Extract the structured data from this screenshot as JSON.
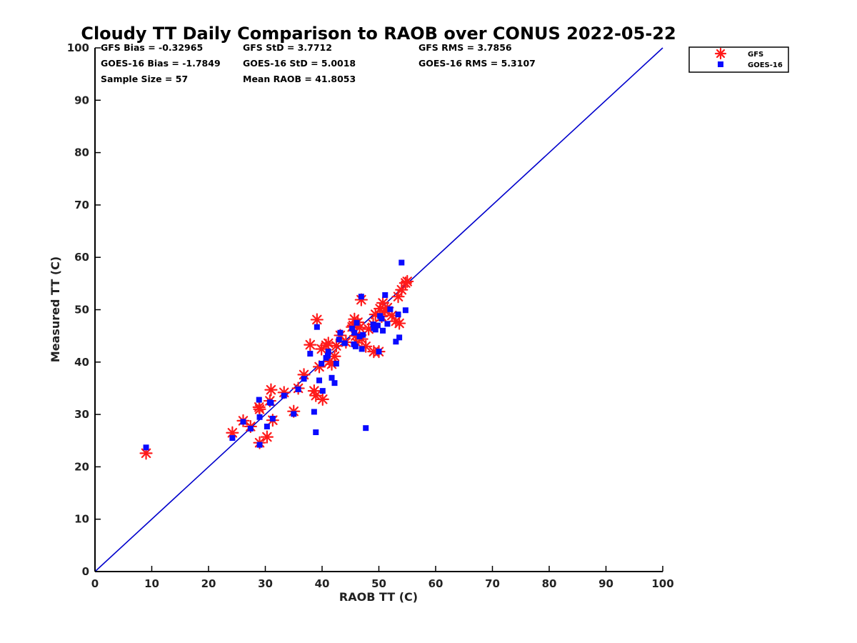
{
  "chart_data": {
    "type": "scatter",
    "title": "Cloudy TT Daily Comparison to RAOB over CONUS 2022-05-22",
    "xlabel": "RAOB TT (C)",
    "ylabel": "Measured TT (C)",
    "xlim": [
      0,
      100
    ],
    "ylim": [
      0,
      100
    ],
    "xticks": [
      "0",
      "10",
      "20",
      "30",
      "40",
      "50",
      "60",
      "70",
      "80",
      "90",
      "100"
    ],
    "yticks": [
      "0",
      "10",
      "20",
      "30",
      "40",
      "50",
      "60",
      "70",
      "80",
      "90",
      "100"
    ],
    "grid": false,
    "legend_position": "outside-top-right",
    "reference_line": {
      "x": [
        0,
        100
      ],
      "y": [
        0,
        100
      ],
      "color": "#0000cc"
    },
    "stats": [
      [
        "GFS Bias = -0.32965",
        "GFS StD = 3.7712",
        "GFS RMS = 3.7856"
      ],
      [
        "GOES-16 Bias = -1.7849",
        "GOES-16 StD = 5.0018",
        "GOES-16 RMS = 5.3107"
      ],
      [
        "Sample Size = 57",
        "Mean RAOB = 41.8053"
      ]
    ],
    "series": [
      {
        "name": "GFS",
        "marker": "asterisk",
        "color": "#ff1a1a",
        "points": [
          [
            9.0,
            22.6
          ],
          [
            24.2,
            26.5
          ],
          [
            26.1,
            28.8
          ],
          [
            27.4,
            27.7
          ],
          [
            28.9,
            31.4
          ],
          [
            29.0,
            31.0
          ],
          [
            29.0,
            24.6
          ],
          [
            30.3,
            25.7
          ],
          [
            30.8,
            32.6
          ],
          [
            31.0,
            34.7
          ],
          [
            31.3,
            28.9
          ],
          [
            33.3,
            34.2
          ],
          [
            35.0,
            30.6
          ],
          [
            35.8,
            35.0
          ],
          [
            36.8,
            37.6
          ],
          [
            37.9,
            43.3
          ],
          [
            38.6,
            34.5
          ],
          [
            38.9,
            33.6
          ],
          [
            39.1,
            48.1
          ],
          [
            39.5,
            39.1
          ],
          [
            39.9,
            42.5
          ],
          [
            40.1,
            32.9
          ],
          [
            40.7,
            43.2
          ],
          [
            41.1,
            43.6
          ],
          [
            41.7,
            39.6
          ],
          [
            42.2,
            41.1
          ],
          [
            42.5,
            43.1
          ],
          [
            43.2,
            45.1
          ],
          [
            45.3,
            46.7
          ],
          [
            45.7,
            48.2
          ],
          [
            45.9,
            45.0
          ],
          [
            46.1,
            43.7
          ],
          [
            46.6,
            46.6
          ],
          [
            46.9,
            51.9
          ],
          [
            47.0,
            44.4
          ],
          [
            47.7,
            43.0
          ],
          [
            49.0,
            47.2
          ],
          [
            49.1,
            42.0
          ],
          [
            49.4,
            49.1
          ],
          [
            50.0,
            42.0
          ],
          [
            50.2,
            50.2
          ],
          [
            50.5,
            48.7
          ],
          [
            50.7,
            51.3
          ],
          [
            51.1,
            49.8
          ],
          [
            51.5,
            50.4
          ],
          [
            53.0,
            47.8
          ],
          [
            53.4,
            52.5
          ],
          [
            53.6,
            47.4
          ],
          [
            54.0,
            53.8
          ],
          [
            54.7,
            55.1
          ],
          [
            55.0,
            55.4
          ],
          [
            45.5,
            47.0
          ],
          [
            46.3,
            47.6
          ],
          [
            44.2,
            43.8
          ],
          [
            41.3,
            40.1
          ],
          [
            48.2,
            46.3
          ],
          [
            52.3,
            48.9
          ]
        ]
      },
      {
        "name": "GOES-16",
        "marker": "square",
        "color": "#0a0aff",
        "points": [
          [
            9.0,
            23.7
          ],
          [
            24.2,
            25.5
          ],
          [
            26.1,
            28.6
          ],
          [
            27.4,
            27.3
          ],
          [
            28.9,
            32.8
          ],
          [
            29.0,
            29.5
          ],
          [
            29.0,
            24.2
          ],
          [
            30.3,
            27.7
          ],
          [
            30.8,
            32.3
          ],
          [
            31.0,
            32.2
          ],
          [
            31.3,
            29.2
          ],
          [
            33.3,
            33.6
          ],
          [
            35.0,
            30.1
          ],
          [
            35.8,
            34.8
          ],
          [
            36.8,
            36.8
          ],
          [
            37.9,
            41.6
          ],
          [
            38.6,
            30.5
          ],
          [
            38.9,
            26.6
          ],
          [
            39.1,
            46.7
          ],
          [
            39.5,
            36.5
          ],
          [
            39.9,
            39.7
          ],
          [
            40.1,
            34.5
          ],
          [
            40.7,
            40.8
          ],
          [
            41.1,
            42.0
          ],
          [
            41.7,
            37.0
          ],
          [
            42.2,
            36.0
          ],
          [
            42.5,
            39.7
          ],
          [
            43.2,
            45.6
          ],
          [
            45.3,
            46.4
          ],
          [
            45.7,
            45.6
          ],
          [
            45.9,
            43.0
          ],
          [
            46.1,
            47.5
          ],
          [
            46.6,
            44.9
          ],
          [
            46.9,
            52.5
          ],
          [
            47.0,
            42.5
          ],
          [
            47.7,
            27.4
          ],
          [
            49.0,
            47.2
          ],
          [
            49.1,
            46.5
          ],
          [
            49.4,
            46.2
          ],
          [
            50.0,
            42.0
          ],
          [
            50.2,
            48.8
          ],
          [
            50.5,
            48.3
          ],
          [
            50.7,
            46.0
          ],
          [
            51.1,
            52.8
          ],
          [
            51.5,
            47.3
          ],
          [
            53.0,
            43.9
          ],
          [
            53.4,
            49.1
          ],
          [
            53.6,
            44.7
          ],
          [
            54.0,
            59.0
          ],
          [
            54.7,
            49.9
          ],
          [
            44.0,
            43.6
          ],
          [
            41.0,
            41.2
          ],
          [
            45.6,
            43.4
          ],
          [
            47.2,
            45.2
          ],
          [
            49.8,
            47.0
          ],
          [
            52.0,
            50.1
          ],
          [
            43.0,
            44.3
          ]
        ]
      }
    ]
  }
}
